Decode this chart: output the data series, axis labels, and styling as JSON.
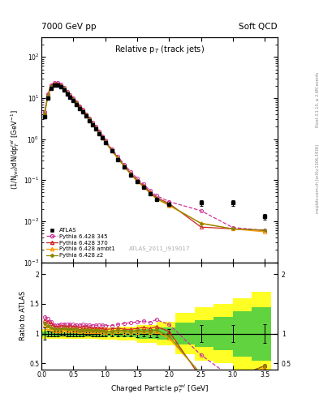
{
  "title_left": "7000 GeV pp",
  "title_right": "Soft QCD",
  "plot_title": "Relative p$_{T}$ (track jets)",
  "ylabel_main": "(1/N$_{jet}$)dN/dp$^{rel}_{T}$ [GeV$^{-1}$]",
  "ylabel_ratio": "Ratio to ATLAS",
  "xlabel": "Charged Particle p$^{rel}_{T}$ [GeV]",
  "watermark": "ATLAS_2011_I919017",
  "right_label_top": "Rivet 3.1.10, ≥ 2.6M events",
  "right_label_bot": "mcplots.cern.ch [arXiv:1306.3436]",
  "atlas_x": [
    0.05,
    0.1,
    0.15,
    0.2,
    0.25,
    0.3,
    0.35,
    0.4,
    0.45,
    0.5,
    0.55,
    0.6,
    0.65,
    0.7,
    0.75,
    0.8,
    0.85,
    0.9,
    0.95,
    1.0,
    1.1,
    1.2,
    1.3,
    1.4,
    1.5,
    1.6,
    1.7,
    1.8,
    2.0,
    2.5,
    3.0,
    3.5
  ],
  "atlas_y": [
    3.5,
    10.0,
    17.0,
    20.5,
    20.5,
    18.5,
    15.5,
    12.5,
    10.2,
    8.5,
    7.0,
    5.6,
    4.5,
    3.6,
    2.85,
    2.25,
    1.75,
    1.36,
    1.05,
    0.82,
    0.51,
    0.32,
    0.205,
    0.135,
    0.092,
    0.066,
    0.047,
    0.034,
    0.026,
    0.028,
    0.028,
    0.013
  ],
  "atlas_yerr": [
    0.35,
    0.5,
    0.7,
    0.8,
    0.8,
    0.7,
    0.6,
    0.5,
    0.4,
    0.34,
    0.28,
    0.22,
    0.18,
    0.14,
    0.11,
    0.09,
    0.07,
    0.055,
    0.042,
    0.033,
    0.02,
    0.013,
    0.009,
    0.006,
    0.005,
    0.003,
    0.0025,
    0.002,
    0.002,
    0.004,
    0.004,
    0.002
  ],
  "py345_x": [
    0.05,
    0.1,
    0.15,
    0.2,
    0.25,
    0.3,
    0.35,
    0.4,
    0.45,
    0.5,
    0.55,
    0.6,
    0.65,
    0.7,
    0.75,
    0.8,
    0.85,
    0.9,
    0.95,
    1.0,
    1.1,
    1.2,
    1.3,
    1.4,
    1.5,
    1.6,
    1.7,
    1.8,
    2.0,
    2.5,
    3.0,
    3.5
  ],
  "py345_y": [
    4.5,
    12.5,
    20.5,
    23.5,
    23.5,
    21.5,
    18.0,
    14.5,
    11.8,
    9.8,
    8.0,
    6.4,
    5.2,
    4.1,
    3.25,
    2.55,
    2.0,
    1.55,
    1.2,
    0.93,
    0.58,
    0.37,
    0.24,
    0.16,
    0.11,
    0.08,
    0.056,
    0.042,
    0.03,
    0.018,
    0.007,
    0.006
  ],
  "py370_x": [
    0.05,
    0.1,
    0.15,
    0.2,
    0.25,
    0.3,
    0.35,
    0.4,
    0.45,
    0.5,
    0.55,
    0.6,
    0.65,
    0.7,
    0.75,
    0.8,
    0.85,
    0.9,
    0.95,
    1.0,
    1.1,
    1.2,
    1.3,
    1.4,
    1.5,
    1.6,
    1.7,
    1.8,
    2.0,
    2.5,
    3.0,
    3.5
  ],
  "py370_y": [
    4.3,
    12.0,
    20.0,
    23.0,
    23.0,
    21.0,
    17.5,
    14.0,
    11.5,
    9.5,
    7.8,
    6.2,
    5.0,
    4.0,
    3.15,
    2.45,
    1.92,
    1.48,
    1.14,
    0.88,
    0.55,
    0.35,
    0.22,
    0.145,
    0.1,
    0.073,
    0.051,
    0.038,
    0.027,
    0.0072,
    0.0065,
    0.006
  ],
  "pyambt1_x": [
    0.05,
    0.1,
    0.15,
    0.2,
    0.25,
    0.3,
    0.35,
    0.4,
    0.45,
    0.5,
    0.55,
    0.6,
    0.65,
    0.7,
    0.75,
    0.8,
    0.85,
    0.9,
    0.95,
    1.0,
    1.1,
    1.2,
    1.3,
    1.4,
    1.5,
    1.6,
    1.7,
    1.8,
    2.0,
    2.5,
    3.0,
    3.5
  ],
  "pyambt1_y": [
    4.0,
    11.0,
    18.5,
    21.5,
    21.5,
    19.5,
    16.5,
    13.2,
    10.8,
    8.9,
    7.3,
    5.8,
    4.7,
    3.75,
    2.95,
    2.32,
    1.82,
    1.4,
    1.08,
    0.84,
    0.52,
    0.33,
    0.21,
    0.138,
    0.094,
    0.068,
    0.048,
    0.035,
    0.024,
    0.009,
    0.0065,
    0.0055
  ],
  "pyz2_x": [
    0.05,
    0.1,
    0.15,
    0.2,
    0.25,
    0.3,
    0.35,
    0.4,
    0.45,
    0.5,
    0.55,
    0.6,
    0.65,
    0.7,
    0.75,
    0.8,
    0.85,
    0.9,
    0.95,
    1.0,
    1.1,
    1.2,
    1.3,
    1.4,
    1.5,
    1.6,
    1.7,
    1.8,
    2.0,
    2.5,
    3.0,
    3.5
  ],
  "pyz2_y": [
    4.1,
    11.3,
    18.8,
    22.0,
    22.0,
    20.0,
    16.8,
    13.5,
    11.0,
    9.1,
    7.5,
    5.9,
    4.8,
    3.82,
    3.02,
    2.37,
    1.86,
    1.43,
    1.1,
    0.85,
    0.53,
    0.34,
    0.215,
    0.14,
    0.096,
    0.069,
    0.049,
    0.036,
    0.025,
    0.0088,
    0.0065,
    0.006
  ],
  "color_atlas": "#000000",
  "color_py345": "#cc3399",
  "color_py370": "#cc2222",
  "color_pyambt1": "#ff9900",
  "color_pyz2": "#888800",
  "band_edges": [
    0.0,
    0.3,
    0.6,
    0.9,
    1.2,
    1.5,
    1.8,
    2.1,
    2.4,
    2.7,
    3.0,
    3.3,
    3.6
  ],
  "band_yellow": [
    0.08,
    0.08,
    0.09,
    0.1,
    0.12,
    0.15,
    0.2,
    0.35,
    0.45,
    0.5,
    0.6,
    0.7
  ],
  "band_green": [
    0.04,
    0.04,
    0.045,
    0.05,
    0.06,
    0.08,
    0.1,
    0.18,
    0.22,
    0.28,
    0.38,
    0.45
  ],
  "ylim_main": [
    0.001,
    300
  ],
  "ylim_ratio": [
    0.4,
    2.2
  ],
  "xlim": [
    0.0,
    3.7
  ],
  "yticks_ratio_left": [
    0.5,
    1.0,
    1.5,
    2.0
  ],
  "yticks_ratio_right": [
    0.5,
    1.0,
    2.0
  ]
}
